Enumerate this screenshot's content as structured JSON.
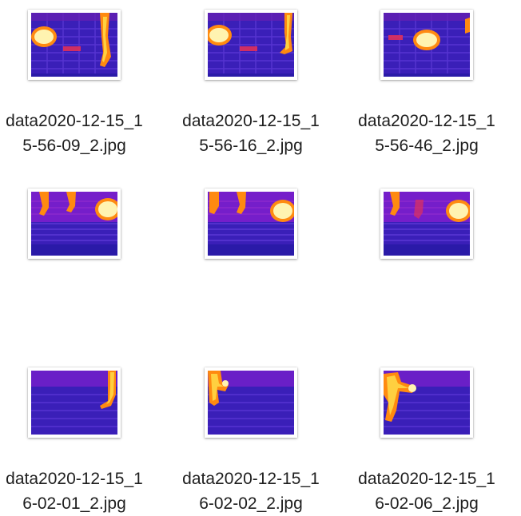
{
  "files": [
    {
      "name_line1": "data2020-12-15_1",
      "name_line2": "5-56-09_2.jpg",
      "thumb_icon": "thermal-image-icon"
    },
    {
      "name_line1": "data2020-12-15_1",
      "name_line2": "5-56-16_2.jpg",
      "thumb_icon": "thermal-image-icon"
    },
    {
      "name_line1": "data2020-12-15_1",
      "name_line2": "5-56-46_2.jpg",
      "thumb_icon": "thermal-image-icon"
    },
    {
      "name_line1": "data2020-12-15_1",
      "name_line2": "6-02-01_2.jpg",
      "thumb_icon": "thermal-image-icon"
    },
    {
      "name_line1": "data2020-12-15_1",
      "name_line2": "6-02-02_2.jpg",
      "thumb_icon": "thermal-image-icon"
    },
    {
      "name_line1": "data2020-12-15_1",
      "name_line2": "6-02-06_2.jpg",
      "thumb_icon": "thermal-image-icon"
    },
    {
      "name_line1": "",
      "name_line2": "",
      "thumb_icon": "thermal-image-icon"
    },
    {
      "name_line1": "",
      "name_line2": "",
      "thumb_icon": "thermal-image-icon"
    },
    {
      "name_line1": "",
      "name_line2": "",
      "thumb_icon": "thermal-image-icon"
    }
  ],
  "colors": {
    "thermal_cold": "#2a1aa8",
    "thermal_mid": "#8a1fd0",
    "thermal_warm": "#e0305a",
    "thermal_hot": "#ff8a10",
    "thermal_hottest": "#fff3b0",
    "label_text": "#1e1e1e"
  }
}
